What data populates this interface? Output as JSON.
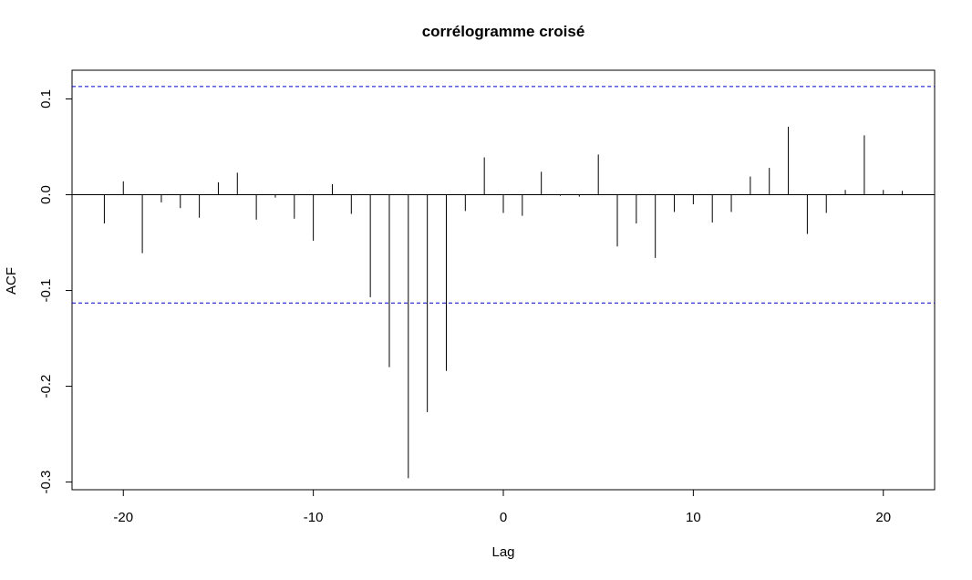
{
  "chart_data": {
    "type": "bar",
    "title": "corrélogramme croisé",
    "xlabel": "Lag",
    "ylabel": "ACF",
    "xlim": [
      -22.7,
      22.7
    ],
    "ylim": [
      -0.308,
      0.13
    ],
    "x_ticks": [
      -20,
      -10,
      0,
      10,
      20
    ],
    "x_tick_labels": [
      "-20",
      "-10",
      "0",
      "10",
      "20"
    ],
    "y_ticks": [
      -0.3,
      -0.2,
      -0.1,
      0.0,
      0.1
    ],
    "y_tick_labels": [
      "-0.3",
      "-0.2",
      "-0.1",
      "0.0",
      "0.1"
    ],
    "confidence_bound": 0.113,
    "confidence_color": "#0000cc",
    "bar_color": "#000000",
    "grid": false,
    "series": [
      {
        "x": [
          -21,
          -20,
          -19,
          -18,
          -17,
          -16,
          -15,
          -14,
          -13,
          -12,
          -11,
          -10,
          -9,
          -8,
          -7,
          -6,
          -5,
          -4,
          -3,
          -2,
          -1,
          0,
          1,
          2,
          3,
          4,
          5,
          6,
          7,
          8,
          9,
          10,
          11,
          12,
          13,
          14,
          15,
          16,
          17,
          18,
          19,
          20,
          21
        ],
        "values": [
          -0.03,
          0.014,
          -0.061,
          -0.008,
          -0.014,
          -0.024,
          0.013,
          0.023,
          -0.026,
          -0.003,
          -0.025,
          -0.048,
          0.011,
          -0.02,
          -0.107,
          -0.18,
          -0.296,
          -0.227,
          -0.184,
          -0.017,
          0.039,
          -0.019,
          -0.022,
          0.024,
          -0.001,
          -0.002,
          0.042,
          -0.054,
          -0.03,
          -0.066,
          -0.018,
          -0.01,
          -0.029,
          -0.018,
          0.019,
          0.028,
          0.071,
          -0.041,
          -0.019,
          0.005,
          0.062,
          0.005,
          0.004
        ]
      }
    ]
  }
}
